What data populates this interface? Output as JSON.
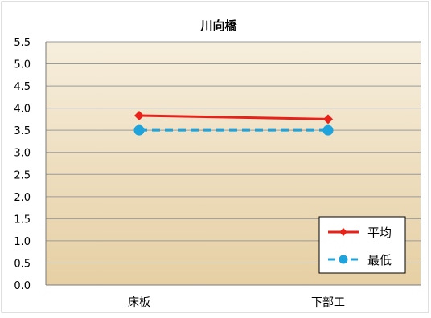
{
  "chart_data": {
    "type": "line",
    "title": "川向橋",
    "categories": [
      "床板",
      "下部工"
    ],
    "series": [
      {
        "name": "平均",
        "values": [
          3.83,
          3.75
        ],
        "color": "#e8221b",
        "line_style": "solid",
        "marker": "diamond"
      },
      {
        "name": "最低",
        "values": [
          3.5,
          3.5
        ],
        "color": "#1ea3dc",
        "line_style": "dashed",
        "marker": "circle"
      }
    ],
    "ylim": [
      0,
      5.5
    ],
    "yticks": [
      "0.0",
      "0.5",
      "1.0",
      "1.5",
      "2.0",
      "2.5",
      "3.0",
      "3.5",
      "4.0",
      "4.5",
      "5.0",
      "5.5"
    ],
    "grid": true,
    "legend_position": "bottom-right",
    "background_gradient": [
      "#f6eedd",
      "#e6cfa3"
    ]
  }
}
